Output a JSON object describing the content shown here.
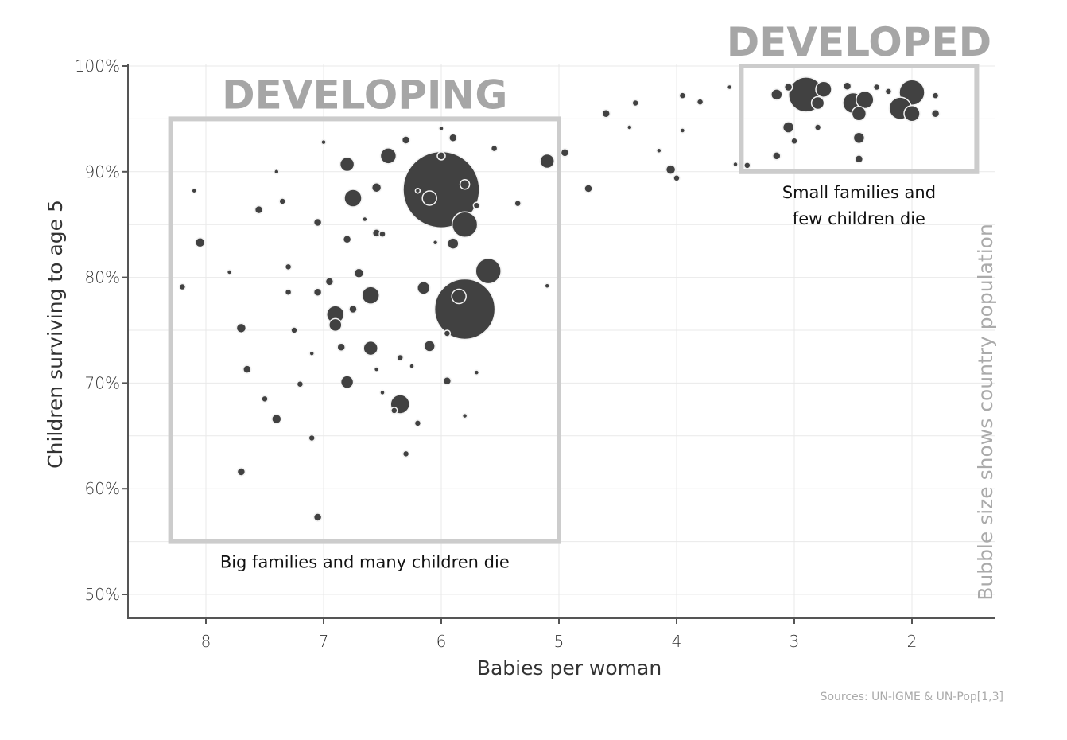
{
  "chart_data": {
    "type": "scatter",
    "xlabel": "Babies per woman",
    "ylabel": "Children surviving to age 5",
    "size_legend": "Bubble size shows country population",
    "source": "Sources: UN-IGME & UN-Pop[1,3]",
    "xlim": [
      8.7,
      1.3
    ],
    "ylim": [
      48.5,
      101
    ],
    "x_reversed": true,
    "x_ticks": [
      8,
      7,
      6,
      5,
      4,
      3,
      2
    ],
    "x_tick_labels": [
      "8",
      "7",
      "6",
      "5",
      "4",
      "3",
      "2"
    ],
    "y_ticks": [
      50,
      60,
      70,
      80,
      90,
      100
    ],
    "y_tick_labels": [
      "50%",
      "60%",
      "70%",
      "80%",
      "90%",
      "100%"
    ],
    "grid": true,
    "regions": [
      {
        "title": "DEVELOPING",
        "caption_lines": [
          "Big families and many children die"
        ],
        "x_range": [
          8.3,
          5.0
        ],
        "y_range": [
          55,
          95
        ]
      },
      {
        "title": "DEVELOPED",
        "caption_lines": [
          "Small families and",
          "few children die"
        ],
        "x_range": [
          3.45,
          1.45
        ],
        "y_range": [
          90,
          100
        ]
      }
    ],
    "points": [
      {
        "x": 6.0,
        "y": 88.3,
        "size": 48
      },
      {
        "x": 5.8,
        "y": 77.0,
        "size": 38
      },
      {
        "x": 2.9,
        "y": 97.3,
        "size": 22
      },
      {
        "x": 2.0,
        "y": 97.5,
        "size": 16
      },
      {
        "x": 2.1,
        "y": 96.0,
        "size": 14
      },
      {
        "x": 5.8,
        "y": 85.0,
        "size": 16
      },
      {
        "x": 5.6,
        "y": 80.6,
        "size": 16
      },
      {
        "x": 2.5,
        "y": 96.5,
        "size": 13
      },
      {
        "x": 2.4,
        "y": 96.8,
        "size": 11
      },
      {
        "x": 2.75,
        "y": 97.8,
        "size": 10
      },
      {
        "x": 2.0,
        "y": 95.5,
        "size": 10
      },
      {
        "x": 2.45,
        "y": 95.5,
        "size": 9
      },
      {
        "x": 2.8,
        "y": 96.5,
        "size": 8
      },
      {
        "x": 6.35,
        "y": 68.0,
        "size": 12
      },
      {
        "x": 6.9,
        "y": 76.5,
        "size": 11
      },
      {
        "x": 6.6,
        "y": 78.3,
        "size": 11
      },
      {
        "x": 6.75,
        "y": 87.5,
        "size": 11
      },
      {
        "x": 6.45,
        "y": 91.5,
        "size": 10
      },
      {
        "x": 6.1,
        "y": 87.5,
        "size": 9
      },
      {
        "x": 5.85,
        "y": 78.2,
        "size": 9
      },
      {
        "x": 5.1,
        "y": 91.0,
        "size": 9
      },
      {
        "x": 6.8,
        "y": 90.7,
        "size": 9
      },
      {
        "x": 6.6,
        "y": 73.3,
        "size": 9
      },
      {
        "x": 6.9,
        "y": 75.5,
        "size": 8
      },
      {
        "x": 6.15,
        "y": 79.0,
        "size": 8
      },
      {
        "x": 6.1,
        "y": 73.5,
        "size": 7
      },
      {
        "x": 6.8,
        "y": 70.1,
        "size": 8
      },
      {
        "x": 5.9,
        "y": 83.2,
        "size": 7
      },
      {
        "x": 3.05,
        "y": 94.2,
        "size": 7
      },
      {
        "x": 3.15,
        "y": 97.3,
        "size": 7
      },
      {
        "x": 2.45,
        "y": 93.2,
        "size": 7
      },
      {
        "x": 4.05,
        "y": 90.2,
        "size": 6
      },
      {
        "x": 5.8,
        "y": 88.8,
        "size": 6
      },
      {
        "x": 6.55,
        "y": 88.5,
        "size": 6
      },
      {
        "x": 7.7,
        "y": 75.2,
        "size": 6
      },
      {
        "x": 7.4,
        "y": 66.6,
        "size": 6
      },
      {
        "x": 8.05,
        "y": 83.3,
        "size": 6
      },
      {
        "x": 4.75,
        "y": 88.4,
        "size": 5
      },
      {
        "x": 4.6,
        "y": 95.5,
        "size": 5
      },
      {
        "x": 6.3,
        "y": 93.0,
        "size": 5
      },
      {
        "x": 6.7,
        "y": 80.4,
        "size": 6
      },
      {
        "x": 7.05,
        "y": 78.6,
        "size": 5
      },
      {
        "x": 7.65,
        "y": 71.3,
        "size": 5
      },
      {
        "x": 7.55,
        "y": 86.4,
        "size": 5
      },
      {
        "x": 7.7,
        "y": 61.6,
        "size": 5
      },
      {
        "x": 7.05,
        "y": 57.3,
        "size": 5
      },
      {
        "x": 6.95,
        "y": 79.6,
        "size": 5
      },
      {
        "x": 6.85,
        "y": 73.4,
        "size": 5
      },
      {
        "x": 6.8,
        "y": 83.6,
        "size": 5
      },
      {
        "x": 6.55,
        "y": 84.2,
        "size": 5
      },
      {
        "x": 6.0,
        "y": 91.5,
        "size": 5
      },
      {
        "x": 5.95,
        "y": 70.2,
        "size": 5
      },
      {
        "x": 5.9,
        "y": 93.2,
        "size": 5
      },
      {
        "x": 4.95,
        "y": 91.8,
        "size": 5
      },
      {
        "x": 3.15,
        "y": 91.5,
        "size": 5
      },
      {
        "x": 2.45,
        "y": 91.2,
        "size": 5
      },
      {
        "x": 3.0,
        "y": 92.9,
        "size": 4
      },
      {
        "x": 2.8,
        "y": 94.2,
        "size": 4
      },
      {
        "x": 7.05,
        "y": 85.2,
        "size": 5
      },
      {
        "x": 7.5,
        "y": 68.5,
        "size": 4
      },
      {
        "x": 7.2,
        "y": 69.9,
        "size": 4
      },
      {
        "x": 7.3,
        "y": 78.6,
        "size": 4
      },
      {
        "x": 7.25,
        "y": 75.0,
        "size": 4
      },
      {
        "x": 6.5,
        "y": 84.1,
        "size": 4
      },
      {
        "x": 6.35,
        "y": 72.4,
        "size": 4
      },
      {
        "x": 6.2,
        "y": 66.2,
        "size": 4
      },
      {
        "x": 5.95,
        "y": 74.7,
        "size": 4
      },
      {
        "x": 5.7,
        "y": 86.8,
        "size": 4
      },
      {
        "x": 5.1,
        "y": 79.2,
        "size": 3
      },
      {
        "x": 8.2,
        "y": 79.1,
        "size": 4
      },
      {
        "x": 8.1,
        "y": 88.2,
        "size": 3
      },
      {
        "x": 7.1,
        "y": 64.8,
        "size": 4
      },
      {
        "x": 6.3,
        "y": 63.3,
        "size": 4
      },
      {
        "x": 5.8,
        "y": 66.9,
        "size": 3
      },
      {
        "x": 5.7,
        "y": 71.0,
        "size": 3
      },
      {
        "x": 7.0,
        "y": 92.8,
        "size": 3
      },
      {
        "x": 6.2,
        "y": 88.2,
        "size": 3
      },
      {
        "x": 5.55,
        "y": 92.2,
        "size": 4
      },
      {
        "x": 5.35,
        "y": 87.0,
        "size": 4
      },
      {
        "x": 4.35,
        "y": 96.5,
        "size": 4
      },
      {
        "x": 3.95,
        "y": 97.2,
        "size": 4
      },
      {
        "x": 3.8,
        "y": 96.6,
        "size": 4
      },
      {
        "x": 3.55,
        "y": 98.0,
        "size": 3
      },
      {
        "x": 3.4,
        "y": 90.6,
        "size": 4
      },
      {
        "x": 3.5,
        "y": 90.7,
        "size": 3
      },
      {
        "x": 4.0,
        "y": 89.4,
        "size": 4
      },
      {
        "x": 4.4,
        "y": 94.2,
        "size": 3
      },
      {
        "x": 4.15,
        "y": 92.0,
        "size": 3
      },
      {
        "x": 3.95,
        "y": 93.9,
        "size": 3
      },
      {
        "x": 1.8,
        "y": 95.5,
        "size": 5
      },
      {
        "x": 1.8,
        "y": 97.2,
        "size": 4
      },
      {
        "x": 2.2,
        "y": 97.6,
        "size": 4
      },
      {
        "x": 2.3,
        "y": 98.0,
        "size": 4
      },
      {
        "x": 2.55,
        "y": 98.1,
        "size": 5
      },
      {
        "x": 3.05,
        "y": 98.0,
        "size": 5
      },
      {
        "x": 7.3,
        "y": 81.0,
        "size": 4
      },
      {
        "x": 6.75,
        "y": 77.0,
        "size": 5
      },
      {
        "x": 6.65,
        "y": 85.5,
        "size": 3
      },
      {
        "x": 6.4,
        "y": 67.4,
        "size": 4
      },
      {
        "x": 6.05,
        "y": 83.3,
        "size": 3
      },
      {
        "x": 6.0,
        "y": 94.1,
        "size": 3
      },
      {
        "x": 7.4,
        "y": 90.0,
        "size": 3
      },
      {
        "x": 7.8,
        "y": 80.5,
        "size": 3
      },
      {
        "x": 7.35,
        "y": 87.2,
        "size": 4
      },
      {
        "x": 7.1,
        "y": 72.8,
        "size": 3
      },
      {
        "x": 6.55,
        "y": 71.3,
        "size": 3
      },
      {
        "x": 6.5,
        "y": 69.1,
        "size": 3
      },
      {
        "x": 6.25,
        "y": 71.6,
        "size": 3
      }
    ]
  }
}
